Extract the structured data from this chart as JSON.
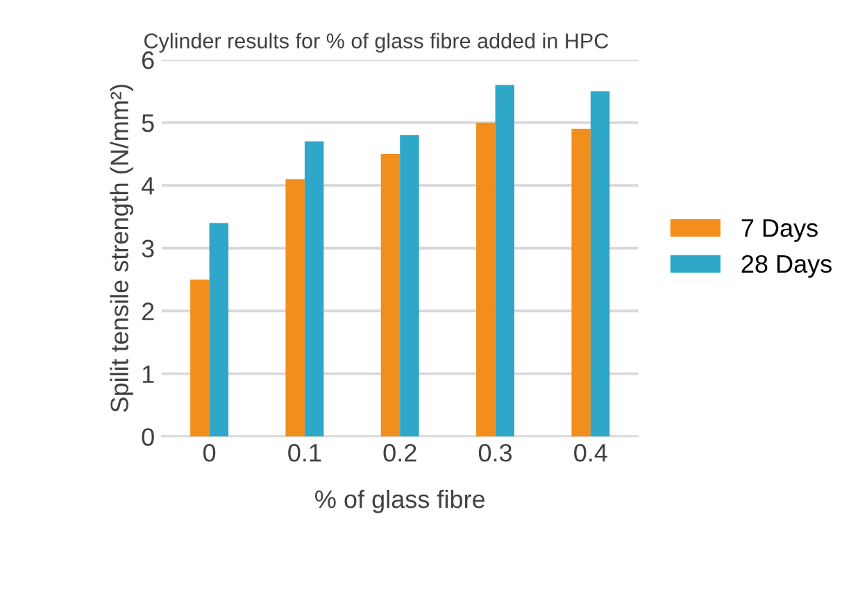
{
  "chart_data": {
    "type": "bar",
    "title": "Cylinder results for % of glass fibre added in HPC",
    "xlabel": "% of glass fibre",
    "ylabel": "Spilit tensile strength (N/mm²)",
    "categories": [
      "0",
      "0.1",
      "0.2",
      "0.3",
      "0.4"
    ],
    "series": [
      {
        "name": "7 Days",
        "color": "#f28e1c",
        "values": [
          2.5,
          4.1,
          4.5,
          5.0,
          4.9
        ]
      },
      {
        "name": "28 Days",
        "color": "#2ea7c8",
        "values": [
          3.4,
          4.7,
          4.8,
          5.6,
          5.5
        ]
      }
    ],
    "ylim": [
      0,
      6
    ],
    "yticks": [
      0,
      1,
      2,
      3,
      4,
      5,
      6
    ],
    "grid": "y",
    "legend": "right"
  }
}
